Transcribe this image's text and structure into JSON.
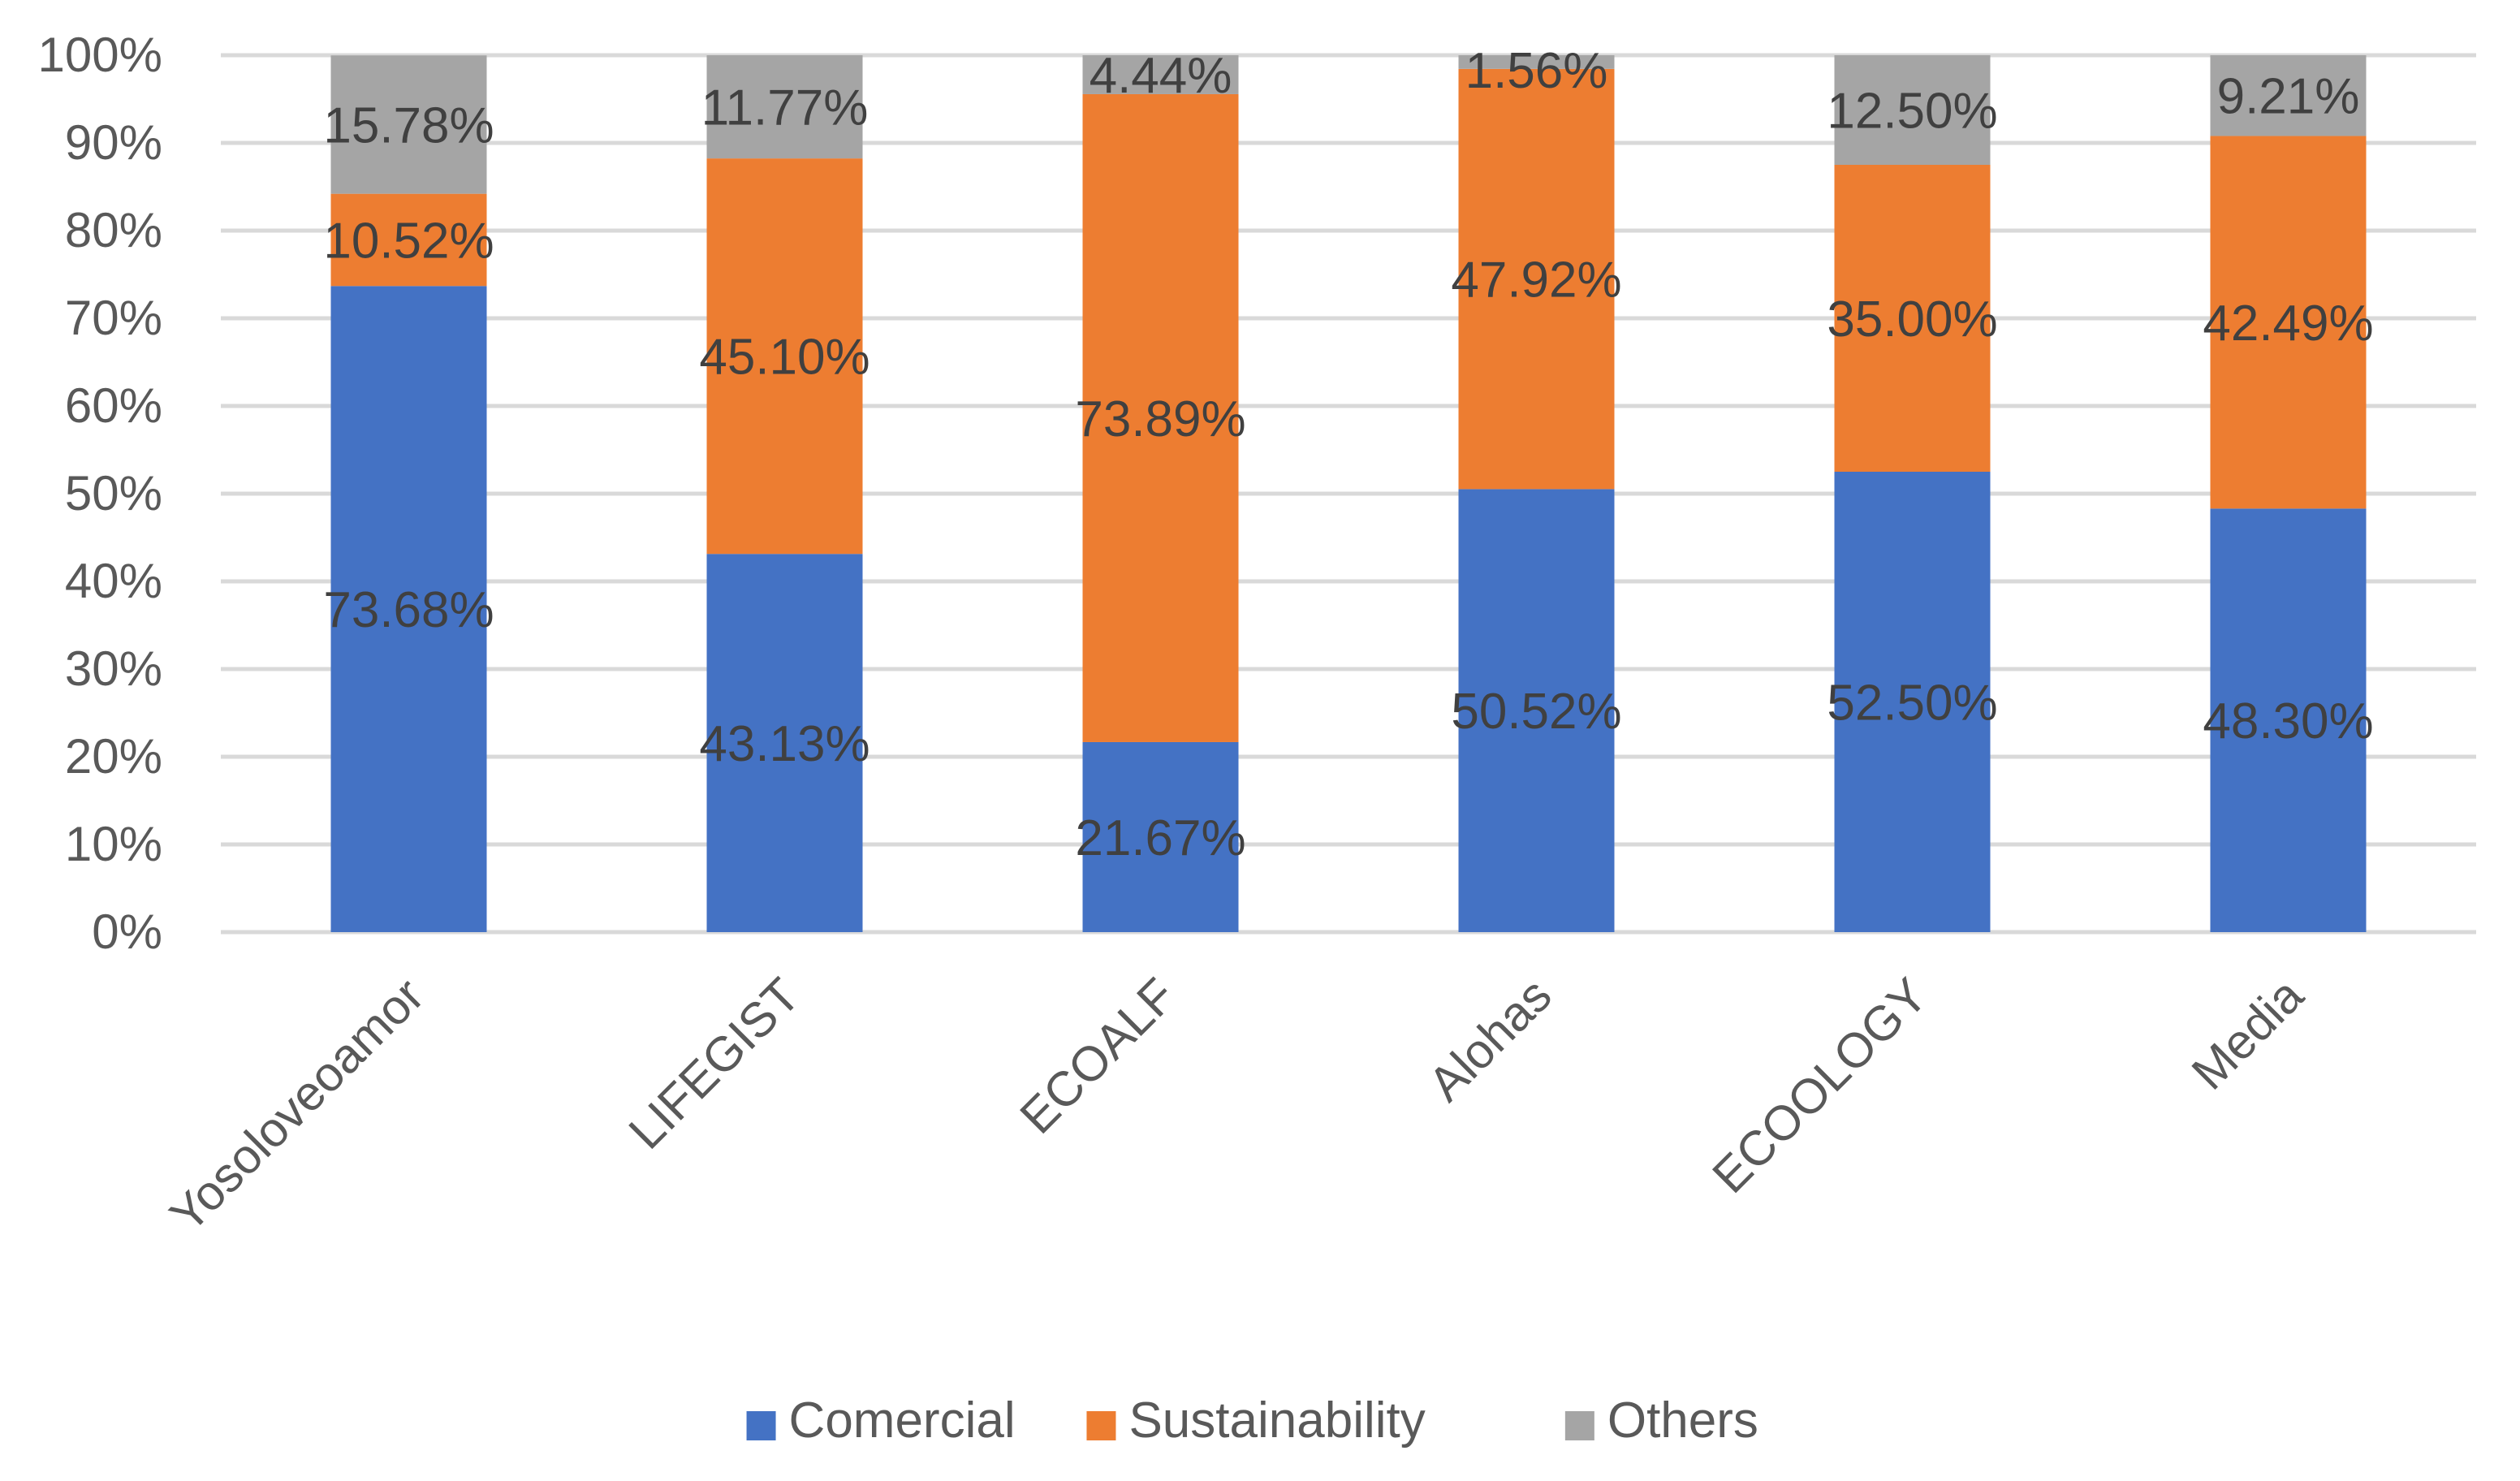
{
  "chart_data": {
    "type": "bar",
    "stacked": true,
    "percent": true,
    "title": "",
    "xlabel": "",
    "ylabel": "",
    "ylim": [
      0,
      100
    ],
    "y_ticks": [
      "0%",
      "10%",
      "20%",
      "30%",
      "40%",
      "50%",
      "60%",
      "70%",
      "80%",
      "90%",
      "100%"
    ],
    "grid": true,
    "legend_position": "bottom",
    "categories": [
      "Yosoloveoamor",
      "LIFEGIST",
      "ECOALF",
      "Alohas",
      "ECOOLOGY",
      "Media"
    ],
    "series": [
      {
        "name": "Comercial",
        "color": "#4472C4",
        "values": [
          73.68,
          43.13,
          21.67,
          50.52,
          52.5,
          48.3
        ],
        "labels": [
          "73.68%",
          "43.13%",
          "21.67%",
          "50.52%",
          "52.50%",
          "48.30%"
        ]
      },
      {
        "name": "Sustainability",
        "color": "#ED7D31",
        "values": [
          10.52,
          45.1,
          73.89,
          47.92,
          35.0,
          42.49
        ],
        "labels": [
          "10.52%",
          "45.10%",
          "73.89%",
          "47.92%",
          "35.00%",
          "42.49%"
        ]
      },
      {
        "name": "Others",
        "color": "#A5A5A5",
        "values": [
          15.78,
          11.77,
          4.44,
          1.56,
          12.5,
          9.21
        ],
        "labels": [
          "15.78%",
          "11.77%",
          "4.44%",
          "1.56%",
          "12.50%",
          "9.21%"
        ]
      }
    ],
    "colors": {
      "grid": "#D9D9D9",
      "text": "#595959",
      "data_label": "#404040"
    }
  }
}
